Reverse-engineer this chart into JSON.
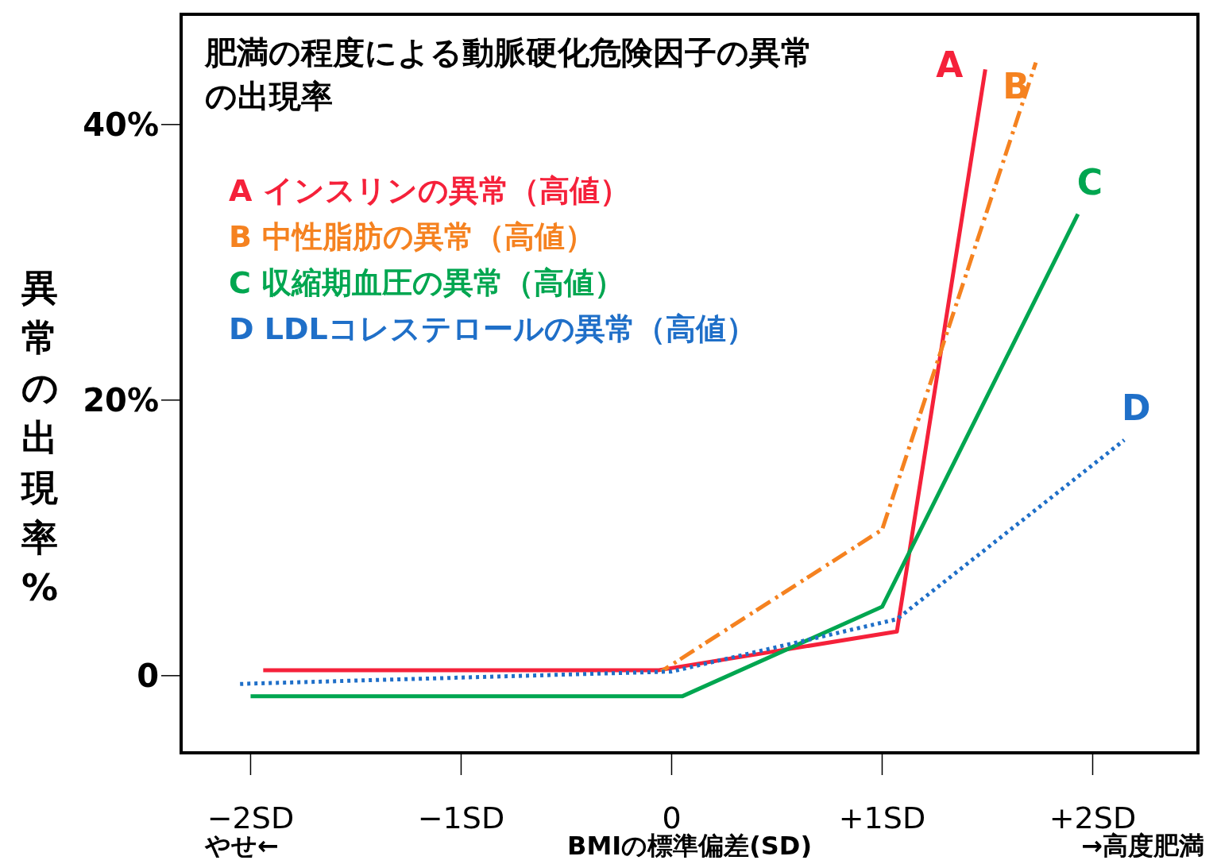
{
  "chart_data": {
    "type": "line",
    "title": "肥満の程度による動脈硬化危険因子の異常の出現率",
    "xlabel": "BMIの標準偏差(SD)",
    "ylabel": "異常の出現率%",
    "xlim": [
      -2.33,
      2.5
    ],
    "xticks": [
      {
        "value": -2,
        "label": "−2SD"
      },
      {
        "value": -1,
        "label": "−1SD"
      },
      {
        "value": 0,
        "label": "0"
      },
      {
        "value": 1,
        "label": "+1SD"
      },
      {
        "value": 2,
        "label": "+2SD"
      }
    ],
    "ylim": [
      -5.6,
      48
    ],
    "yticks": [
      0,
      {
        "value": 20,
        "label": "20%"
      },
      {
        "value": 40,
        "label": "40%"
      }
    ],
    "grid": false,
    "legend": "top left",
    "marker": "none",
    "series": [
      {
        "name": "A インスリンの異常（高値）",
        "color": "#f5213a",
        "line_style": "solid",
        "x": [
          -1.94,
          -0.06,
          1.07,
          1.49
        ],
        "values": [
          0.4,
          0.4,
          3.2,
          44
        ]
      },
      {
        "name": "B 中性脂肪の異常（高値）",
        "color": "#f58220",
        "line_style": "dashed",
        "x": [
          -0.05,
          1.0,
          1.73
        ],
        "values": [
          0.3,
          10.6,
          44.5
        ]
      },
      {
        "name": "C 収縮期血圧の異常（高値）",
        "color": "#00a650",
        "line_style": "solid",
        "x": [
          -2,
          0.05,
          1.0,
          1.93
        ],
        "values": [
          -1.5,
          -1.5,
          5.0,
          33.5
        ]
      },
      {
        "name": "D LDLコレステロールの異常（高値）",
        "color": "#1f6fc8",
        "line_style": "dotted",
        "x": [
          -2.05,
          0,
          1.07,
          2.15
        ],
        "values": [
          -0.6,
          0.3,
          4.1,
          17.1
        ]
      }
    ],
    "annotations": [
      "A",
      "B",
      "C",
      "D",
      "やせ←",
      "→高度肥満"
    ]
  }
}
